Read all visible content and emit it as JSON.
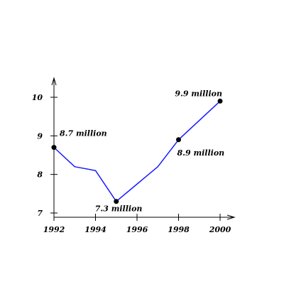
{
  "chart_data": {
    "type": "line",
    "title": "",
    "xlabel": "",
    "ylabel": "",
    "xlim": [
      1992,
      2000
    ],
    "ylim": [
      7,
      10
    ],
    "grid": false,
    "x_ticks": [
      {
        "value": 1992,
        "label": "1992"
      },
      {
        "value": 1994,
        "label": "1994"
      },
      {
        "value": 1996,
        "label": "1996"
      },
      {
        "value": 1998,
        "label": "1998"
      },
      {
        "value": 2000,
        "label": "2000"
      }
    ],
    "y_ticks": [
      {
        "value": 7,
        "label": "7"
      },
      {
        "value": 8,
        "label": "8"
      },
      {
        "value": 9,
        "label": "9"
      },
      {
        "value": 10,
        "label": "10"
      }
    ],
    "series": [
      {
        "color": "#1a1aff",
        "points": [
          {
            "x": 1992,
            "y": 8.7
          },
          {
            "x": 1993,
            "y": 8.2
          },
          {
            "x": 1994,
            "y": 8.1
          },
          {
            "x": 1995,
            "y": 7.3
          },
          {
            "x": 1996,
            "y": 7.75
          },
          {
            "x": 1997,
            "y": 8.2
          },
          {
            "x": 1998,
            "y": 8.9
          },
          {
            "x": 2000,
            "y": 9.9
          }
        ]
      }
    ],
    "marked_points": [
      {
        "x": 1992,
        "y": 8.7,
        "label": "8.7 million",
        "label_position": "right"
      },
      {
        "x": 1995,
        "y": 7.3,
        "label": "7.3 million",
        "label_position": "below"
      },
      {
        "x": 1998,
        "y": 8.9,
        "label": "8.9 million",
        "label_position": "below-right"
      },
      {
        "x": 2000,
        "y": 9.9,
        "label": "9.9 million",
        "label_position": "above"
      }
    ]
  }
}
